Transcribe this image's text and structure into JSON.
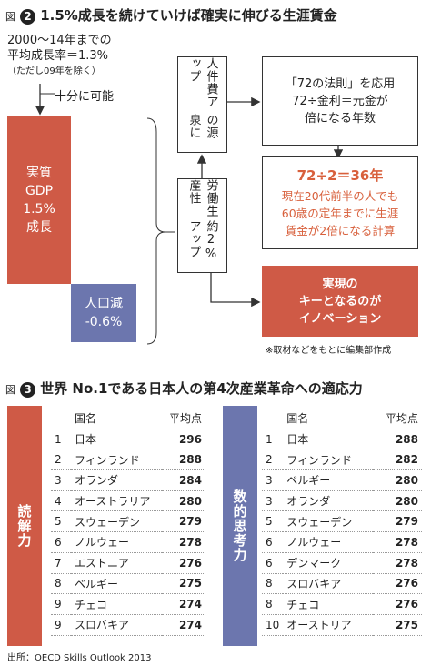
{
  "figure2": {
    "label": "図",
    "number": "2",
    "title": "1.5%成長を続けていけば確実に伸びる生涯賃金",
    "premise": [
      "2000〜14年までの",
      "平均成長率＝1.3%",
      "（ただし09年を除く）"
    ],
    "feasible": "十分に可能",
    "real_gdp": [
      "実質",
      "GDP",
      "1.5%",
      "成長"
    ],
    "population": [
      "人口減",
      "-0.6%"
    ],
    "source_box": [
      "人件費アップ",
      "の源泉に"
    ],
    "productivity_box": [
      "労働生産性",
      "約2%アップ"
    ],
    "rule_box": [
      "「72の法則」を応用",
      "72÷金利＝元金が",
      "倍になる年数"
    ],
    "result_box": {
      "headline": "72÷2＝36年",
      "lines": [
        "現在20代前半の人でも",
        "60歳の定年までに生涯",
        "賃金が2倍になる計算"
      ]
    },
    "key_box": [
      "実現の",
      "キーとなるのが",
      "イノベーション"
    ],
    "note": "※取材などをもとに編集部作成"
  },
  "figure3": {
    "label": "図",
    "number": "3",
    "title": "世界 No.1である日本人の第4次産業革命への適応力",
    "tables": [
      {
        "category": "読解力",
        "header": [
          "国名",
          "平均点"
        ],
        "rows": [
          [
            1,
            "日本",
            296
          ],
          [
            2,
            "フィンランド",
            288
          ],
          [
            3,
            "オランダ",
            284
          ],
          [
            4,
            "オーストラリア",
            280
          ],
          [
            5,
            "スウェーデン",
            279
          ],
          [
            6,
            "ノルウェー",
            278
          ],
          [
            7,
            "エストニア",
            276
          ],
          [
            8,
            "ベルギー",
            275
          ],
          [
            9,
            "チェコ",
            274
          ],
          [
            9,
            "スロバキア",
            274
          ]
        ]
      },
      {
        "category": "数的思考力",
        "header": [
          "国名",
          "平均点"
        ],
        "rows": [
          [
            1,
            "日本",
            288
          ],
          [
            2,
            "フィンランド",
            282
          ],
          [
            3,
            "ベルギー",
            280
          ],
          [
            3,
            "オランダ",
            280
          ],
          [
            5,
            "スウェーデン",
            279
          ],
          [
            6,
            "ノルウェー",
            278
          ],
          [
            6,
            "デンマーク",
            278
          ],
          [
            8,
            "スロバキア",
            276
          ],
          [
            8,
            "チェコ",
            276
          ],
          [
            10,
            "オーストリア",
            275
          ]
        ]
      }
    ],
    "source": "出所：OECD Skills Outlook 2013"
  }
}
